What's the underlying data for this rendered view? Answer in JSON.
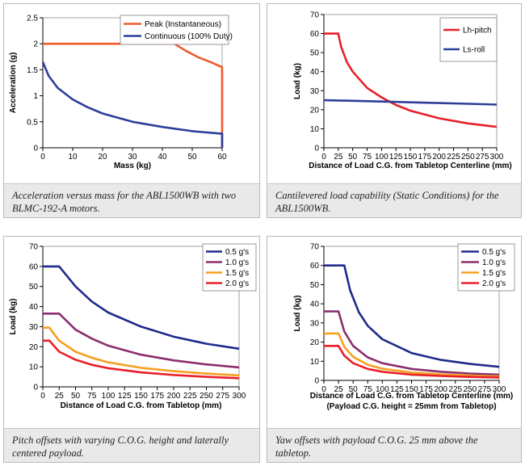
{
  "panels": [
    {
      "caption": "Acceleration versus mass for the ABL1500WB with two BLMC-192-A motors.",
      "chart_data": {
        "type": "line",
        "xlabel": "Mass (kg)",
        "ylabel": "Acceleration (g)",
        "xlim": [
          0,
          60
        ],
        "ylim": [
          0,
          2.5
        ],
        "xticks": [
          "0",
          "10",
          "20",
          "30",
          "40",
          "50",
          "60"
        ],
        "yticks": [
          "0",
          "0.5",
          "1",
          "1.5",
          "2",
          "2.5"
        ],
        "grid": false,
        "legend_position": "top-right",
        "series": [
          {
            "name": "Peak (Instantaneous)",
            "color": "#ee5a2a",
            "x": [
              0,
              44,
              48,
              52,
              56,
              60,
              60
            ],
            "y": [
              2.0,
              2.0,
              1.86,
              1.74,
              1.65,
              1.55,
              0
            ]
          },
          {
            "name": "Continuous (100% Duty)",
            "color": "#2d3e9a",
            "x": [
              0,
              2,
              5,
              10,
              15,
              20,
              30,
              40,
              50,
              60,
              60
            ],
            "y": [
              1.65,
              1.38,
              1.15,
              0.93,
              0.78,
              0.66,
              0.5,
              0.4,
              0.32,
              0.27,
              0
            ]
          }
        ]
      }
    },
    {
      "caption": "Cantilevered load capability (Static Conditions) for the ABL1500WB.",
      "chart_data": {
        "type": "line",
        "xlabel": "Distance of Load C.G. from Tabletop Centerline (mm)",
        "ylabel": "Load (kg)",
        "xlim": [
          0,
          300
        ],
        "ylim": [
          0,
          70
        ],
        "xticks": [
          "0",
          "25",
          "50",
          "75",
          "100",
          "125",
          "150",
          "175",
          "200",
          "225",
          "250",
          "275",
          "300"
        ],
        "yticks": [
          "0",
          "10",
          "20",
          "30",
          "40",
          "50",
          "60",
          "70"
        ],
        "grid": false,
        "legend_position": "top-right",
        "series": [
          {
            "name": "Lh-pitch",
            "color": "#e8202a",
            "x": [
              0,
              25,
              30,
              40,
              50,
              75,
              100,
              125,
              150,
              200,
              250,
              300
            ],
            "y": [
              60,
              60,
              53,
              45,
              40,
              31.5,
              26.5,
              22.5,
              19.5,
              15.5,
              12.8,
              11
            ]
          },
          {
            "name": "Ls-roll",
            "color": "#2d3e9a",
            "x": [
              0,
              50,
              100,
              150,
              200,
              250,
              300
            ],
            "y": [
              25,
              24.7,
              24.3,
              23.9,
              23.5,
              23.1,
              22.7
            ]
          }
        ]
      }
    },
    {
      "caption": "Pitch offsets with varying C.O.G. height and laterally centered payload.",
      "chart_data": {
        "type": "line",
        "xlabel": "Distance of Load C.G. from Tabletop (mm)",
        "ylabel": "Load (kg)",
        "xlim": [
          0,
          300
        ],
        "ylim": [
          0,
          70
        ],
        "xticks": [
          "0",
          "25",
          "50",
          "75",
          "100",
          "125",
          "150",
          "175",
          "200",
          "225",
          "250",
          "275",
          "300"
        ],
        "yticks": [
          "0",
          "10",
          "20",
          "30",
          "40",
          "50",
          "60",
          "70"
        ],
        "grid": false,
        "legend_position": "top-right",
        "series": [
          {
            "name": "0.5 g's",
            "color": "#1f2a8c",
            "x": [
              0,
              25,
              50,
              75,
              100,
              150,
              200,
              250,
              300
            ],
            "y": [
              60,
              60,
              50,
              42.5,
              37,
              30,
              25,
              21.5,
              19
            ]
          },
          {
            "name": "1.0 g's",
            "color": "#8b2e6e",
            "x": [
              0,
              25,
              50,
              75,
              100,
              150,
              200,
              250,
              300
            ],
            "y": [
              36.5,
              36.5,
              28.5,
              24,
              20.5,
              16,
              13.2,
              11.2,
              9.7
            ]
          },
          {
            "name": "1.5 g's",
            "color": "#f5a020",
            "x": [
              0,
              10,
              25,
              50,
              75,
              100,
              150,
              200,
              250,
              300
            ],
            "y": [
              29.5,
              29.5,
              23,
              17.5,
              14.5,
              12.2,
              9.5,
              7.8,
              6.6,
              5.7
            ]
          },
          {
            "name": "2.0 g's",
            "color": "#e8202a",
            "x": [
              0,
              10,
              25,
              50,
              75,
              100,
              150,
              200,
              250,
              300
            ],
            "y": [
              23,
              23,
              17.5,
              13.5,
              11,
              9.3,
              7.2,
              5.9,
              5,
              4.3
            ]
          }
        ]
      }
    },
    {
      "caption": "Yaw offsets with payload C.O.G. 25 mm above the tabletop.",
      "chart_data": {
        "type": "line",
        "xlabel": "Distance of Load C.G. from Tabletop Centerline (mm)",
        "xlabel2": "(Payload C.G. height = 25mm from Tabletop)",
        "ylabel": "Load (kg)",
        "xlim": [
          0,
          300
        ],
        "ylim": [
          0,
          70
        ],
        "xticks": [
          "0",
          "25",
          "50",
          "75",
          "100",
          "125",
          "150",
          "175",
          "200",
          "225",
          "250",
          "275",
          "300"
        ],
        "yticks": [
          "0",
          "10",
          "20",
          "30",
          "40",
          "50",
          "60",
          "70"
        ],
        "grid": false,
        "legend_position": "top-right",
        "series": [
          {
            "name": "0.5 g's",
            "color": "#1f2a8c",
            "x": [
              0,
              35,
              45,
              60,
              75,
              100,
              150,
              200,
              250,
              300
            ],
            "y": [
              60,
              60,
              47,
              35.5,
              28.5,
              21.5,
              14.3,
              10.7,
              8.6,
              7.1
            ]
          },
          {
            "name": "1.0 g's",
            "color": "#8b2e6e",
            "x": [
              0,
              25,
              35,
              50,
              75,
              100,
              150,
              200,
              250,
              300
            ],
            "y": [
              36,
              36,
              25.5,
              18,
              12,
              9,
              6,
              4.5,
              3.6,
              3
            ]
          },
          {
            "name": "1.5 g's",
            "color": "#f5a020",
            "x": [
              0,
              25,
              35,
              50,
              75,
              100,
              150,
              200,
              250,
              300
            ],
            "y": [
              24.5,
              24.5,
              17.5,
              12.3,
              8.2,
              6.1,
              4.1,
              3.1,
              2.5,
              2.1
            ]
          },
          {
            "name": "2.0 g's",
            "color": "#e8202a",
            "x": [
              0,
              25,
              35,
              50,
              75,
              100,
              150,
              200,
              250,
              300
            ],
            "y": [
              18,
              18,
              12.9,
              9,
              6,
              4.5,
              3,
              2.3,
              1.8,
              1.5
            ]
          }
        ]
      }
    }
  ]
}
